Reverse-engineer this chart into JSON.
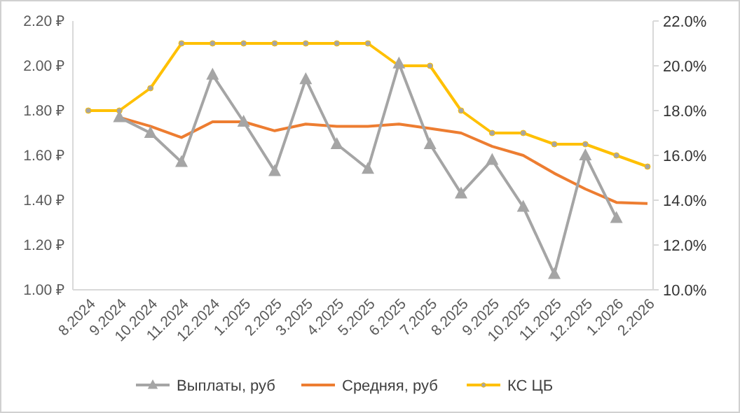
{
  "chart_data": {
    "type": "line",
    "categories": [
      "8.2024",
      "9.2024",
      "10.2024",
      "11.2024",
      "12.2024",
      "1.2025",
      "2.2025",
      "3.2025",
      "4.2025",
      "5.2025",
      "6.2025",
      "7.2025",
      "8.2025",
      "9.2025",
      "10.2025",
      "11.2025",
      "12.2025",
      "1.2026",
      "2.2026"
    ],
    "series": [
      {
        "name": "Выплаты, руб",
        "color": "#a5a5a5",
        "marker": "triangle",
        "values": [
          null,
          1.77,
          1.7,
          1.57,
          1.96,
          1.75,
          1.53,
          1.94,
          1.65,
          1.54,
          2.01,
          1.65,
          1.43,
          1.58,
          1.37,
          1.07,
          1.6,
          1.32,
          null
        ]
      },
      {
        "name": "Средняя, руб",
        "color": "#ed7d31",
        "marker": "none",
        "values": [
          null,
          1.77,
          1.73,
          1.68,
          1.75,
          1.75,
          1.71,
          1.74,
          1.73,
          1.73,
          1.74,
          1.72,
          1.7,
          1.64,
          1.6,
          1.52,
          1.45,
          1.39,
          1.385
        ]
      },
      {
        "name": "КС ЦБ",
        "color": "#ffc000",
        "marker": "circle",
        "axis": "y2",
        "values": [
          18,
          18,
          19,
          21,
          21,
          21,
          21,
          21,
          21,
          21,
          20,
          20,
          18,
          17,
          17,
          16.5,
          16.5,
          16,
          15.5
        ]
      }
    ],
    "ylim": [
      1.0,
      2.2
    ],
    "yticks": [
      {
        "value": 1.0,
        "label": "1.00 ₽"
      },
      {
        "value": 1.2,
        "label": "1.20 ₽"
      },
      {
        "value": 1.4,
        "label": "1.40 ₽"
      },
      {
        "value": 1.6,
        "label": "1.60 ₽"
      },
      {
        "value": 1.8,
        "label": "1.80 ₽"
      },
      {
        "value": 2.0,
        "label": "2.00 ₽"
      },
      {
        "value": 2.2,
        "label": "2.20 ₽"
      }
    ],
    "y2lim": [
      10,
      22
    ],
    "y2ticks": [
      {
        "value": 10,
        "label": "10.0%"
      },
      {
        "value": 12,
        "label": "12.0%"
      },
      {
        "value": 14,
        "label": "14.0%"
      },
      {
        "value": 16,
        "label": "16.0%"
      },
      {
        "value": 18,
        "label": "18.0%"
      },
      {
        "value": 20,
        "label": "20.0%"
      },
      {
        "value": 22,
        "label": "22.0%"
      }
    ],
    "grid": false,
    "legend": "bottom"
  }
}
